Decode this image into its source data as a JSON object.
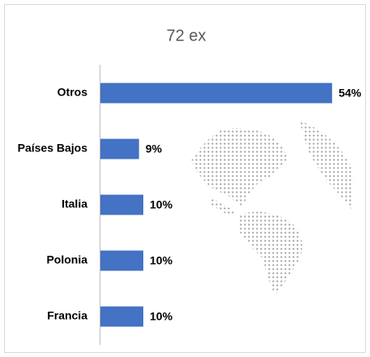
{
  "chart_data": {
    "type": "bar",
    "orientation": "horizontal",
    "title": "72 ex",
    "categories": [
      "Otros",
      "Países Bajos",
      "Italia",
      "Polonia",
      "Francia"
    ],
    "values": [
      54,
      9,
      10,
      10,
      10
    ],
    "value_labels": [
      "54%",
      "9%",
      "10%",
      "10%",
      "10%"
    ],
    "color": "#4472c4"
  }
}
